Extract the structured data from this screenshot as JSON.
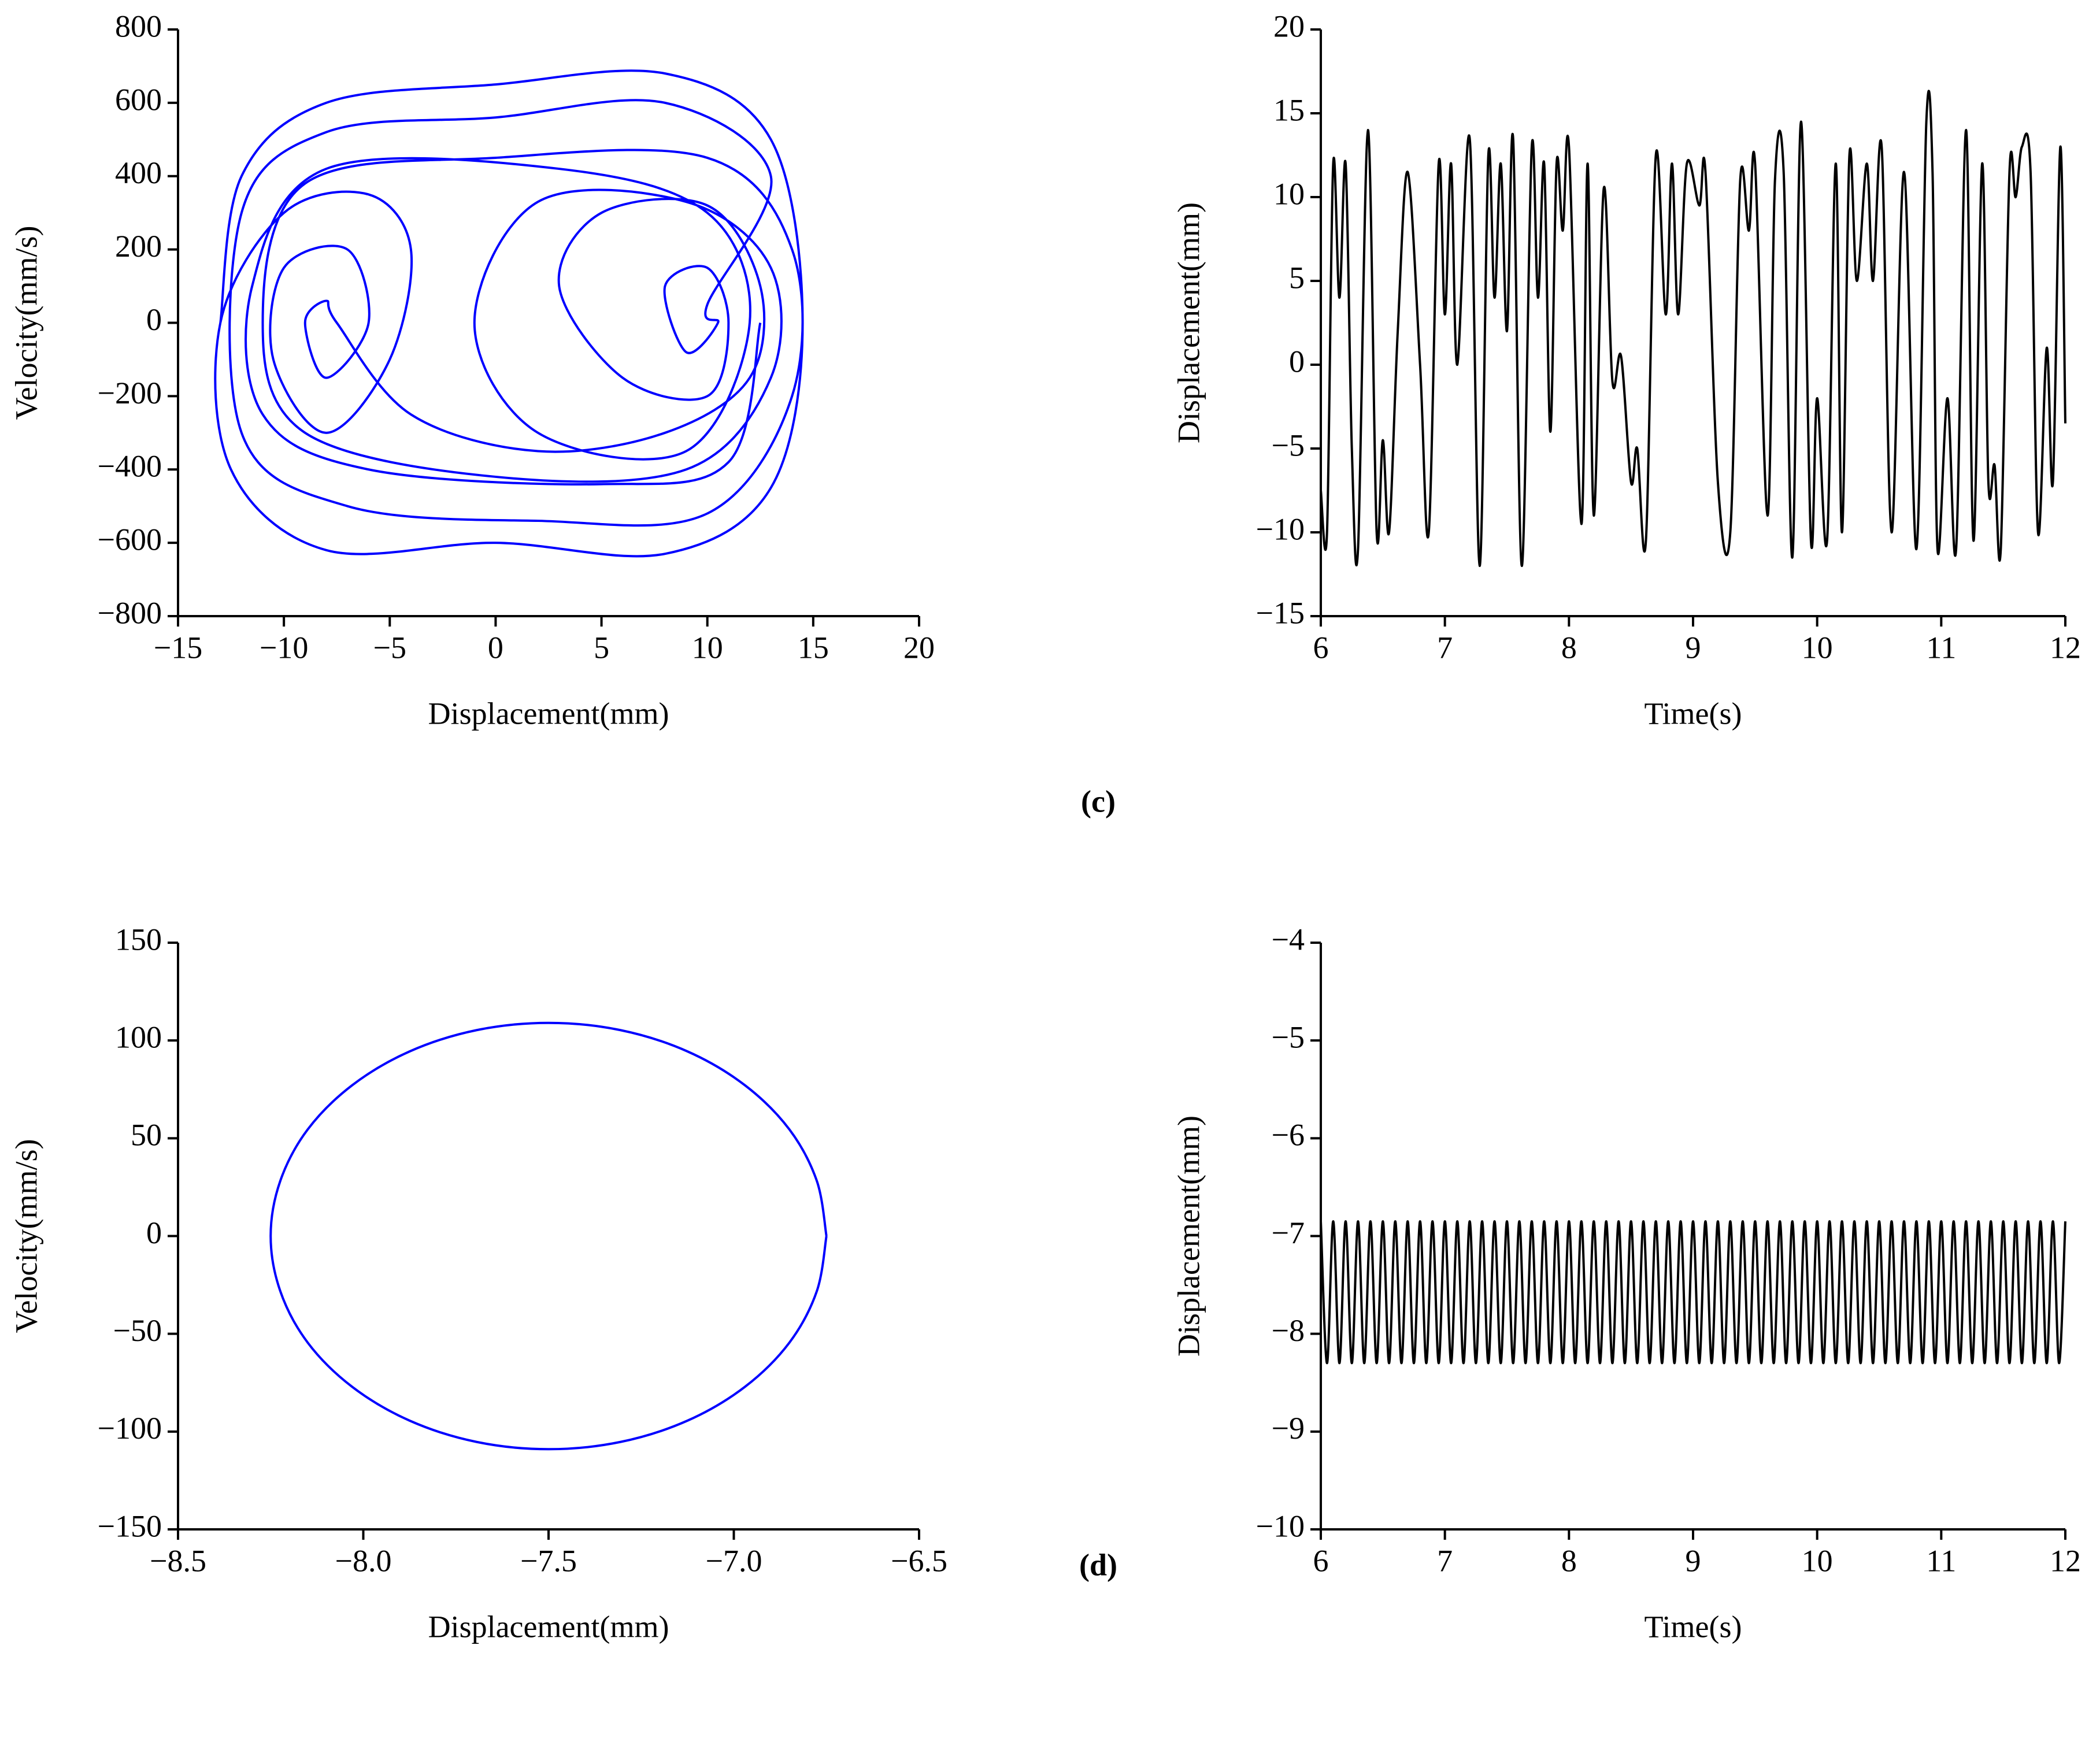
{
  "panel_labels": [
    "(c)",
    "(d)"
  ],
  "chart_data": [
    {
      "type": "line",
      "xlabel": "Displacement(mm)",
      "ylabel": "Velocity(mm/s)",
      "xlim": [
        -15,
        20
      ],
      "ylim": [
        -800,
        800
      ],
      "xticks": [
        {
          "value": -15,
          "label": "−15"
        },
        {
          "value": -10,
          "label": "−10"
        },
        {
          "value": -5,
          "label": "−5"
        },
        0,
        5,
        10,
        15,
        20
      ],
      "yticks": [
        {
          "value": -800,
          "label": "−800"
        },
        {
          "value": -600,
          "label": "−600"
        },
        {
          "value": -400,
          "label": "−400"
        },
        {
          "value": -200,
          "label": "−200"
        },
        0,
        200,
        400,
        600,
        800
      ],
      "x": [
        -13,
        -12,
        -8,
        0,
        8,
        13,
        14.5,
        13,
        8,
        0,
        -8,
        -12.5,
        -13,
        -10,
        -6,
        -4,
        -5,
        -8,
        -10.5,
        -10,
        -7,
        -6,
        -8,
        -9,
        -8,
        -7.5,
        -4,
        2,
        8,
        12,
        12.5,
        10,
        5,
        3,
        6,
        10,
        11,
        10,
        8,
        9,
        10.5,
        10,
        13,
        8,
        0,
        -8,
        -12,
        -12,
        -7,
        2,
        10,
        14,
        14,
        10,
        0,
        -9,
        -11,
        -9,
        0,
        9,
        13,
        13,
        9,
        2,
        -1,
        2,
        9,
        12,
        10,
        3,
        -8,
        -11.5,
        -11,
        -6,
        5,
        11,
        12.5
      ],
      "series": [
        {
          "color": "#0000ff",
          "values": [
            0,
            400,
            600,
            650,
            680,
            500,
            0,
            -450,
            -630,
            -600,
            -620,
            -400,
            0,
            300,
            350,
            200,
            -100,
            -300,
            -100,
            150,
            200,
            0,
            -150,
            0,
            60,
            0,
            -250,
            -350,
            -300,
            -150,
            100,
            320,
            300,
            100,
            -150,
            -200,
            0,
            150,
            100,
            -80,
            0,
            50,
            400,
            600,
            560,
            520,
            300,
            -300,
            -500,
            -540,
            -520,
            -200,
            200,
            450,
            450,
            380,
            0,
            -300,
            -420,
            -400,
            -150,
            150,
            330,
            330,
            0,
            -300,
            -350,
            0,
            300,
            420,
            420,
            100,
            -250,
            -400,
            -440,
            -380,
            0
          ]
        }
      ]
    },
    {
      "type": "line",
      "xlabel": "Time(s)",
      "ylabel": "Displacement(mm)",
      "xlim": [
        6,
        12
      ],
      "ylim": [
        -15,
        20
      ],
      "xticks": [
        6,
        7,
        8,
        9,
        10,
        11,
        12
      ],
      "yticks": [
        {
          "value": -15,
          "label": "−15"
        },
        {
          "value": -10,
          "label": "−10"
        },
        {
          "value": -5,
          "label": "−5"
        },
        0,
        5,
        10,
        15,
        20
      ],
      "x": [
        6.0,
        6.05,
        6.1,
        6.15,
        6.2,
        6.25,
        6.3,
        6.38,
        6.45,
        6.5,
        6.55,
        6.62,
        6.7,
        6.8,
        6.87,
        6.95,
        7.0,
        7.05,
        7.1,
        7.2,
        7.28,
        7.35,
        7.4,
        7.45,
        7.5,
        7.55,
        7.62,
        7.7,
        7.75,
        7.8,
        7.85,
        7.9,
        7.95,
        8.0,
        8.1,
        8.15,
        8.2,
        8.28,
        8.35,
        8.42,
        8.5,
        8.55,
        8.62,
        8.7,
        8.78,
        8.83,
        8.88,
        8.95,
        9.05,
        9.1,
        9.2,
        9.3,
        9.38,
        9.45,
        9.5,
        9.6,
        9.66,
        9.73,
        9.8,
        9.87,
        9.95,
        10.0,
        10.08,
        10.15,
        10.2,
        10.26,
        10.32,
        10.4,
        10.45,
        10.52,
        10.6,
        10.7,
        10.8,
        10.88,
        10.93,
        10.97,
        11.05,
        11.12,
        11.2,
        11.26,
        11.33,
        11.38,
        11.43,
        11.48,
        11.55,
        11.6,
        11.65,
        11.72,
        11.78,
        11.85,
        11.9,
        11.96,
        12.0
      ],
      "series": [
        {
          "color": "#000000",
          "values": [
            -7.5,
            -10,
            12,
            4,
            12,
            -5,
            -11,
            14,
            -10,
            -4.5,
            -10,
            2,
            11.5,
            0,
            -10,
            12,
            3,
            12,
            0,
            13.5,
            -12,
            12.5,
            4,
            12,
            2,
            13.5,
            -12,
            13,
            4,
            12,
            -4,
            12,
            8,
            13,
            -9.5,
            12,
            -9,
            10.5,
            -1,
            0.5,
            -7,
            -5,
            -10.5,
            12.5,
            3,
            12,
            3,
            12,
            9.5,
            11.5,
            -7,
            -10,
            11,
            8,
            12,
            -9,
            11,
            11.5,
            -11.5,
            14.5,
            -10.5,
            -2,
            -10.5,
            12,
            -10,
            12.5,
            5,
            12,
            5,
            13,
            -10,
            11.5,
            -11,
            14.5,
            11.5,
            -11,
            -2,
            -11,
            14,
            -10.5,
            12,
            -7,
            -6,
            -11,
            11.5,
            10,
            13,
            11.5,
            -10,
            1,
            -7,
            13,
            -3.5
          ]
        }
      ]
    },
    {
      "type": "line",
      "xlabel": "Displacement(mm)",
      "ylabel": "Velocity(mm/s)",
      "xlim": [
        -8.5,
        -6.5
      ],
      "ylim": [
        -150,
        150
      ],
      "xticks": [
        {
          "value": -8.5,
          "label": "−8.5"
        },
        {
          "value": -8,
          "label": "−8.0"
        },
        {
          "value": -7.5,
          "label": "−7.5"
        },
        {
          "value": -7,
          "label": "−7.0"
        },
        {
          "value": -6.5,
          "label": "−6.5"
        }
      ],
      "yticks": [
        {
          "value": -150,
          "label": "−150"
        },
        {
          "value": -100,
          "label": "−100"
        },
        {
          "value": -50,
          "label": "−50"
        },
        0,
        50,
        100,
        150
      ],
      "x": [
        -6.75,
        -6.776,
        -6.85,
        -6.97,
        -7.125,
        -7.306,
        -7.5,
        -7.694,
        -7.875,
        -8.03,
        -8.15,
        -8.224,
        -8.25,
        -8.224,
        -8.15,
        -8.03,
        -7.875,
        -7.694,
        -7.5,
        -7.306,
        -7.125,
        -6.97,
        -6.85,
        -6.776,
        -6.75
      ],
      "series": [
        {
          "color": "#0000ff",
          "values": [
            0,
            28.2,
            54.5,
            77.1,
            94.4,
            105.3,
            109,
            105.3,
            94.4,
            77.1,
            54.5,
            28.2,
            0,
            -28.2,
            -54.5,
            -77.1,
            -94.4,
            -105.3,
            -109,
            -105.3,
            -94.4,
            -77.1,
            -54.5,
            -28.2,
            0
          ]
        }
      ]
    },
    {
      "type": "line",
      "xlabel": "Time(s)",
      "ylabel": "Displacement(mm)",
      "xlim": [
        6,
        12
      ],
      "ylim": [
        -10,
        -4
      ],
      "xticks": [
        6,
        7,
        8,
        9,
        10,
        11,
        12
      ],
      "yticks": [
        {
          "value": -10,
          "label": "−10"
        },
        {
          "value": -9,
          "label": "−9"
        },
        {
          "value": -8,
          "label": "−8"
        },
        {
          "value": -7,
          "label": "−7"
        },
        {
          "value": -6,
          "label": "−6"
        },
        {
          "value": -5,
          "label": "−5"
        },
        {
          "value": -4,
          "label": "−4"
        }
      ],
      "x": [
        6,
        6.05,
        6.1,
        6.15,
        6.2,
        6.25,
        6.3,
        6.35,
        6.4,
        6.45,
        6.5,
        6.55,
        6.6,
        6.65,
        6.7,
        6.75,
        6.8,
        6.85,
        6.9,
        6.95,
        7,
        7.05,
        7.1,
        7.15,
        7.2,
        7.25,
        7.3,
        7.35,
        7.4,
        7.45,
        7.5,
        7.55,
        7.6,
        7.65,
        7.7,
        7.75,
        7.8,
        7.85,
        7.9,
        7.95,
        8,
        8.05,
        8.1,
        8.15,
        8.2,
        8.25,
        8.3,
        8.35,
        8.4,
        8.45,
        8.5,
        8.55,
        8.6,
        8.65,
        8.7,
        8.75,
        8.8,
        8.85,
        8.9,
        8.95,
        9,
        9.05,
        9.1,
        9.15,
        9.2,
        9.25,
        9.3,
        9.35,
        9.4,
        9.45,
        9.5,
        9.55,
        9.6,
        9.65,
        9.7,
        9.75,
        9.8,
        9.85,
        9.9,
        9.95,
        10,
        10.05,
        10.1,
        10.15,
        10.2,
        10.25,
        10.3,
        10.35,
        10.4,
        10.45,
        10.5,
        10.55,
        10.6,
        10.65,
        10.7,
        10.75,
        10.8,
        10.85,
        10.9,
        10.95,
        11,
        11.05,
        11.1,
        11.15,
        11.2,
        11.25,
        11.3,
        11.35,
        11.4,
        11.45,
        11.5,
        11.55,
        11.6,
        11.65,
        11.7,
        11.75,
        11.8,
        11.85,
        11.9,
        11.95,
        12
      ],
      "series": [
        {
          "color": "#000000",
          "values": [
            -6.85,
            -8.3,
            -6.85,
            -8.3,
            -6.85,
            -8.3,
            -6.85,
            -8.3,
            -6.85,
            -8.3,
            -6.85,
            -8.3,
            -6.85,
            -8.3,
            -6.85,
            -8.3,
            -6.85,
            -8.3,
            -6.85,
            -8.3,
            -6.85,
            -8.3,
            -6.85,
            -8.3,
            -6.85,
            -8.3,
            -6.85,
            -8.3,
            -6.85,
            -8.3,
            -6.85,
            -8.3,
            -6.85,
            -8.3,
            -6.85,
            -8.3,
            -6.85,
            -8.3,
            -6.85,
            -8.3,
            -6.85,
            -8.3,
            -6.85,
            -8.3,
            -6.85,
            -8.3,
            -6.85,
            -8.3,
            -6.85,
            -8.3,
            -6.85,
            -8.3,
            -6.85,
            -8.3,
            -6.85,
            -8.3,
            -6.85,
            -8.3,
            -6.85,
            -8.3,
            -6.85,
            -8.3,
            -6.85,
            -8.3,
            -6.85,
            -8.3,
            -6.85,
            -8.3,
            -6.85,
            -8.3,
            -6.85,
            -8.3,
            -6.85,
            -8.3,
            -6.85,
            -8.3,
            -6.85,
            -8.3,
            -6.85,
            -8.3,
            -6.85,
            -8.3,
            -6.85,
            -8.3,
            -6.85,
            -8.3,
            -6.85,
            -8.3,
            -6.85,
            -8.3,
            -6.85,
            -8.3,
            -6.85,
            -8.3,
            -6.85,
            -8.3,
            -6.85,
            -8.3,
            -6.85,
            -8.3,
            -6.85,
            -8.3,
            -6.85,
            -8.3,
            -6.85,
            -8.3,
            -6.85,
            -8.3,
            -6.85,
            -8.3,
            -6.85,
            -8.3,
            -6.85,
            -8.3,
            -6.85,
            -8.3,
            -6.85,
            -8.3,
            -6.85,
            -8.3,
            -6.85
          ]
        }
      ]
    }
  ]
}
